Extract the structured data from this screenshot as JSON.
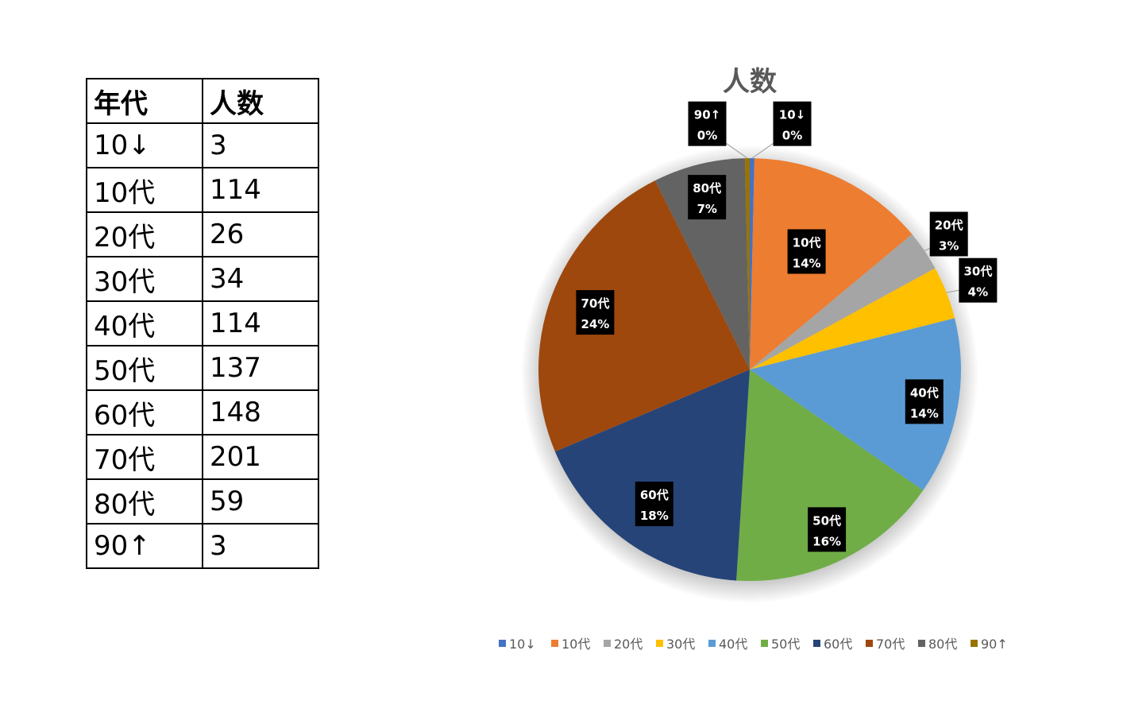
{
  "table": {
    "headers": [
      "年代",
      "人数"
    ],
    "rows": [
      {
        "age": "10↓",
        "count": "3"
      },
      {
        "age": "10代",
        "count": "114"
      },
      {
        "age": "20代",
        "count": "26"
      },
      {
        "age": "30代",
        "count": "34"
      },
      {
        "age": "40代",
        "count": "114"
      },
      {
        "age": "50代",
        "count": "137"
      },
      {
        "age": "60代",
        "count": "148"
      },
      {
        "age": "70代",
        "count": "201"
      },
      {
        "age": "80代",
        "count": "59"
      },
      {
        "age": "90↑",
        "count": "3"
      }
    ]
  },
  "chart_data": {
    "type": "pie",
    "title": "人数",
    "categories": [
      "10↓",
      "10代",
      "20代",
      "30代",
      "40代",
      "50代",
      "60代",
      "70代",
      "80代",
      "90↑"
    ],
    "values": [
      3,
      114,
      26,
      34,
      114,
      137,
      148,
      201,
      59,
      3
    ],
    "percent_labels": [
      "0%",
      "14%",
      "3%",
      "4%",
      "14%",
      "16%",
      "18%",
      "24%",
      "7%",
      "0%"
    ],
    "colors": [
      "#4472C4",
      "#ED7D31",
      "#A5A5A5",
      "#FFC000",
      "#5B9BD5",
      "#70AD47",
      "#264478",
      "#9E480E",
      "#636363",
      "#997300"
    ],
    "legend": "bottom"
  }
}
